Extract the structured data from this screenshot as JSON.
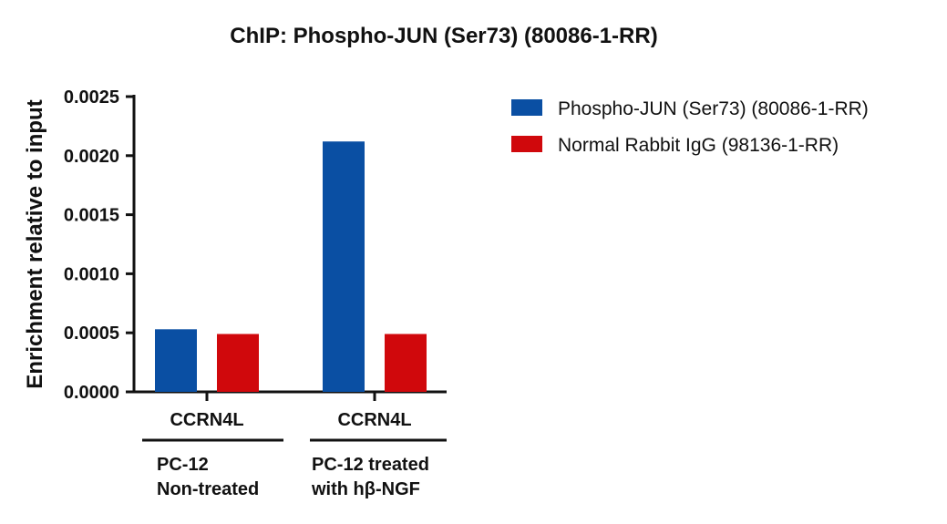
{
  "chart_data": {
    "type": "bar",
    "title": "ChIP: Phospho-JUN (Ser73) (80086-1-RR)",
    "ylabel": "Enrichment relative to input",
    "xlabel": "",
    "ylim": [
      0,
      0.0025
    ],
    "yticks": [
      "0.0000",
      "0.0005",
      "0.0010",
      "0.0015",
      "0.0020",
      "0.0025"
    ],
    "categories": [
      "CCRN4L",
      "CCRN4L"
    ],
    "groups": [
      {
        "lines": [
          "PC-12",
          "Non-treated"
        ]
      },
      {
        "lines": [
          "PC-12 treated",
          "with hβ-NGF"
        ]
      }
    ],
    "series": [
      {
        "name": "Phospho-JUN (Ser73) (80086-1-RR)",
        "color": "#0a4fa3",
        "values": [
          0.00053,
          0.00212
        ]
      },
      {
        "name": "Normal Rabbit IgG (98136-1-RR)",
        "color": "#d0080c",
        "values": [
          0.00049,
          0.00049
        ]
      }
    ],
    "legend_position": "right",
    "grid": false
  }
}
